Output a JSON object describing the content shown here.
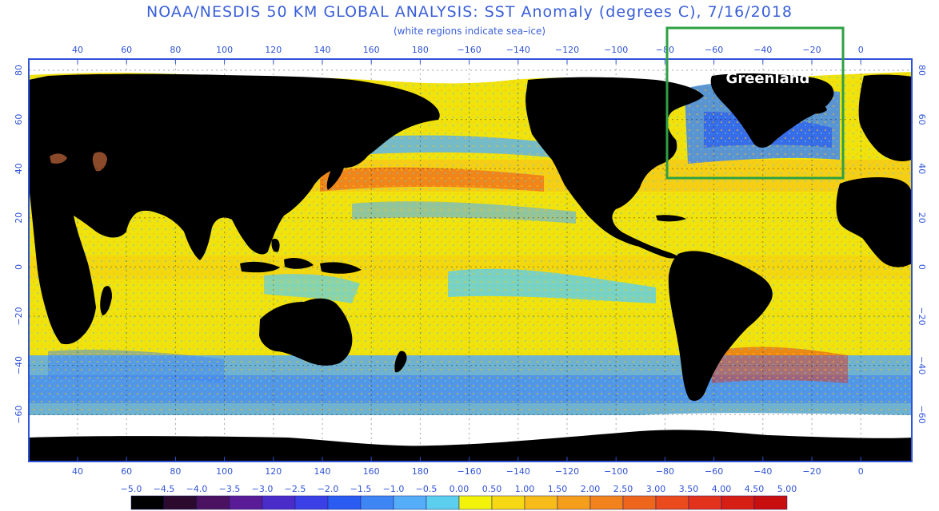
{
  "title": "NOAA/NESDIS 50 KM GLOBAL ANALYSIS: SST Anomaly (degrees C), 7/16/2018",
  "subtitle": "(white regions indicate sea–ice)",
  "annotation": {
    "label": "Greenland",
    "box_color": "#2ea043"
  },
  "axes": {
    "lon_ticks": [
      "40",
      "60",
      "80",
      "100",
      "120",
      "140",
      "160",
      "180",
      "−160",
      "−140",
      "−120",
      "−100",
      "−80",
      "−60",
      "−40",
      "−20",
      "0"
    ],
    "lat_ticks": [
      "80",
      "60",
      "40",
      "20",
      "0",
      "−20",
      "−40",
      "−60"
    ]
  },
  "colorbar": {
    "labels": [
      "−5.0",
      "−4.5",
      "−4.0",
      "−3.5",
      "−3.0",
      "−2.5",
      "−2.0",
      "−1.5",
      "−1.0",
      "−0.5",
      "0.00",
      "0.50",
      "1.00",
      "1.50",
      "2.00",
      "2.50",
      "3.00",
      "3.50",
      "4.00",
      "4.50",
      "5.00"
    ],
    "colors": [
      "#000000",
      "#2b0a2e",
      "#4a1260",
      "#5a1c96",
      "#4a2cc8",
      "#3a40e6",
      "#2a5cf2",
      "#3f86f5",
      "#55adf7",
      "#5ccfee",
      "#f2f20a",
      "#f6d814",
      "#f7bb1a",
      "#f59e1c",
      "#f2821c",
      "#ee661c",
      "#ea4a1c",
      "#e3321c",
      "#d61e14",
      "#c80e0e"
    ]
  }
}
